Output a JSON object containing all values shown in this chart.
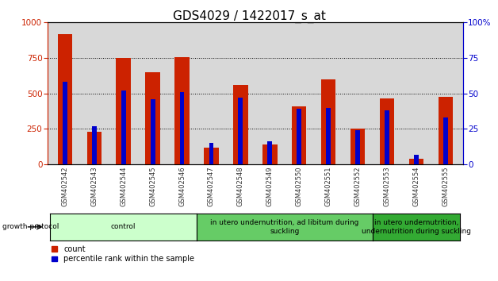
{
  "title": "GDS4029 / 1422017_s_at",
  "samples": [
    "GSM402542",
    "GSM402543",
    "GSM402544",
    "GSM402545",
    "GSM402546",
    "GSM402547",
    "GSM402548",
    "GSM402549",
    "GSM402550",
    "GSM402551",
    "GSM402552",
    "GSM402553",
    "GSM402554",
    "GSM402555"
  ],
  "counts": [
    920,
    230,
    750,
    650,
    755,
    120,
    560,
    140,
    410,
    600,
    250,
    465,
    40,
    475
  ],
  "percentiles": [
    58,
    27,
    52,
    46,
    51,
    15,
    47,
    16,
    39,
    40,
    24,
    38,
    7,
    33
  ],
  "count_color": "#cc2200",
  "percentile_color": "#0000cc",
  "ylim_left": [
    0,
    1000
  ],
  "ylim_right": [
    0,
    100
  ],
  "yticks_left": [
    0,
    250,
    500,
    750,
    1000
  ],
  "yticks_right": [
    0,
    25,
    50,
    75,
    100
  ],
  "groups": [
    {
      "label": "control",
      "start": 0,
      "end": 5,
      "color": "#ccffcc"
    },
    {
      "label": "in utero undernutrition, ad libitum during\nsuckling",
      "start": 5,
      "end": 11,
      "color": "#66cc66"
    },
    {
      "label": "in utero undernutrition,\nundernutrition during suckling",
      "start": 11,
      "end": 14,
      "color": "#33aa33"
    }
  ],
  "growth_protocol_label": "growth protocol",
  "legend_items": [
    {
      "label": "count",
      "color": "#cc2200"
    },
    {
      "label": "percentile rank within the sample",
      "color": "#0000cc"
    }
  ],
  "ax_bg_color": "#d8d8d8",
  "fig_bg_color": "#ffffff",
  "title_fontsize": 11,
  "tick_fontsize": 7.5
}
